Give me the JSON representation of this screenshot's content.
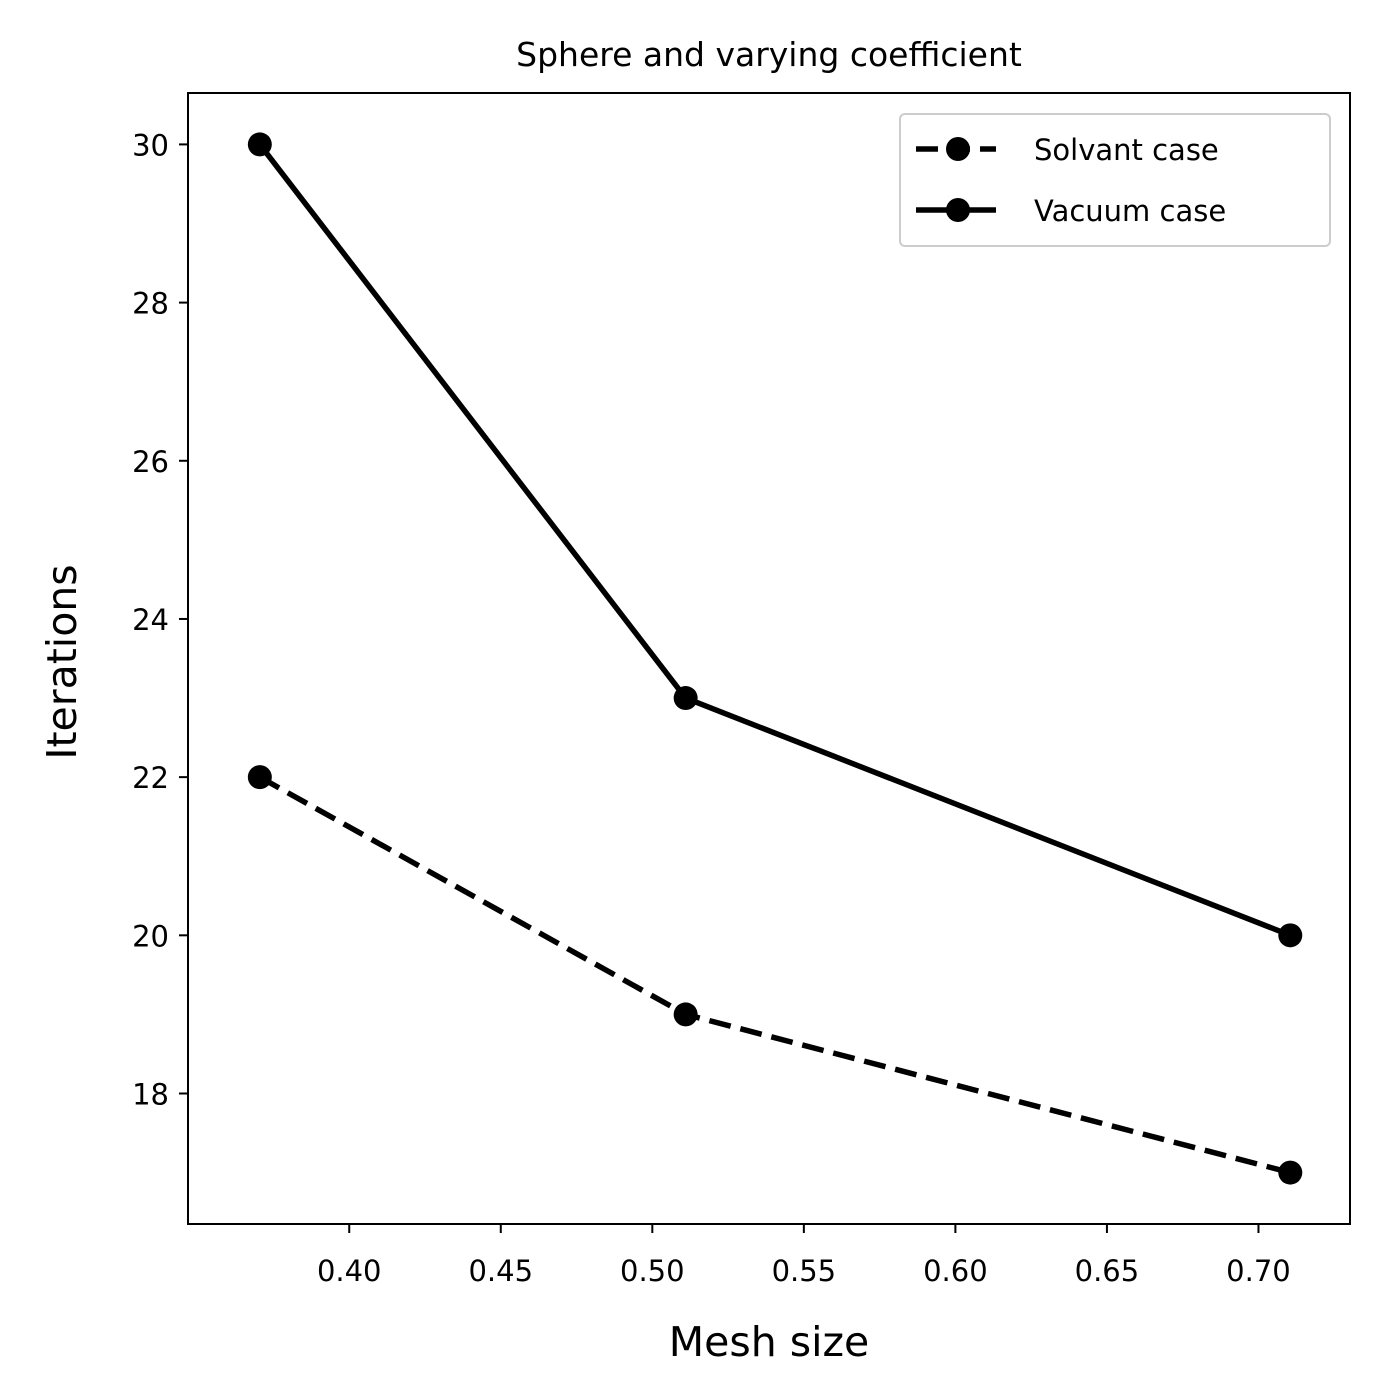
{
  "chart_data": {
    "type": "line",
    "title": "Sphere and varying coefficient",
    "xlabel": "Mesh size",
    "ylabel": "Iterations",
    "xlim": [
      0.3468,
      0.7302
    ],
    "ylim": [
      16.35,
      30.65
    ],
    "xticks": [
      {
        "value": 0.4,
        "label": "0.40"
      },
      {
        "value": 0.45,
        "label": "0.45"
      },
      {
        "value": 0.5,
        "label": "0.50"
      },
      {
        "value": 0.55,
        "label": "0.55"
      },
      {
        "value": 0.6,
        "label": "0.60"
      },
      {
        "value": 0.65,
        "label": "0.65"
      },
      {
        "value": 0.7,
        "label": "0.70"
      }
    ],
    "yticks": [
      {
        "value": 18,
        "label": "18"
      },
      {
        "value": 20,
        "label": "20"
      },
      {
        "value": 22,
        "label": "22"
      },
      {
        "value": 24,
        "label": "24"
      },
      {
        "value": 26,
        "label": "26"
      },
      {
        "value": 28,
        "label": "28"
      },
      {
        "value": 30,
        "label": "30"
      }
    ],
    "grid": false,
    "legend_position": "top-right",
    "series": [
      {
        "name": "Solvant case",
        "line_style": "dashed",
        "marker": "circle",
        "color": "#000000",
        "x": [
          0.3705,
          0.511,
          0.7105
        ],
        "y": [
          22,
          19,
          17
        ]
      },
      {
        "name": "Vacuum case",
        "line_style": "solid",
        "marker": "circle",
        "color": "#000000",
        "x": [
          0.3705,
          0.511,
          0.7105
        ],
        "y": [
          30,
          23,
          20
        ]
      }
    ]
  }
}
